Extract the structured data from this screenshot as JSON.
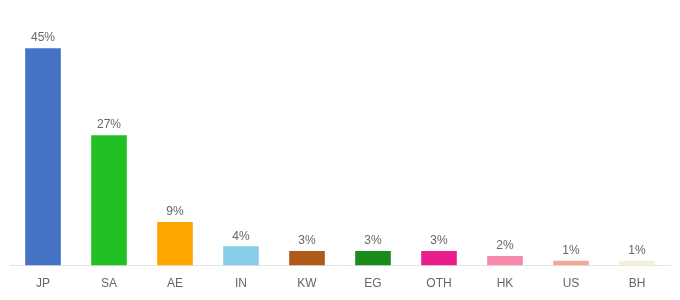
{
  "chart_data": {
    "type": "bar",
    "categories": [
      "JP",
      "SA",
      "AE",
      "IN",
      "KW",
      "EG",
      "OTH",
      "HK",
      "US",
      "BH"
    ],
    "values": [
      45,
      27,
      9,
      4,
      3,
      3,
      3,
      2,
      1,
      1
    ],
    "value_labels": [
      "45%",
      "27%",
      "9%",
      "4%",
      "3%",
      "3%",
      "3%",
      "2%",
      "1%",
      "1%"
    ],
    "colors": [
      "#4472c4",
      "#22c022",
      "#ffa500",
      "#87ceeb",
      "#b05a1a",
      "#1a8c1a",
      "#e91e8c",
      "#f48aaa",
      "#f0a898",
      "#f5f0d8"
    ],
    "ylim": [
      0,
      50
    ],
    "grid": false,
    "data_labels": true,
    "tick_labels": "x"
  }
}
